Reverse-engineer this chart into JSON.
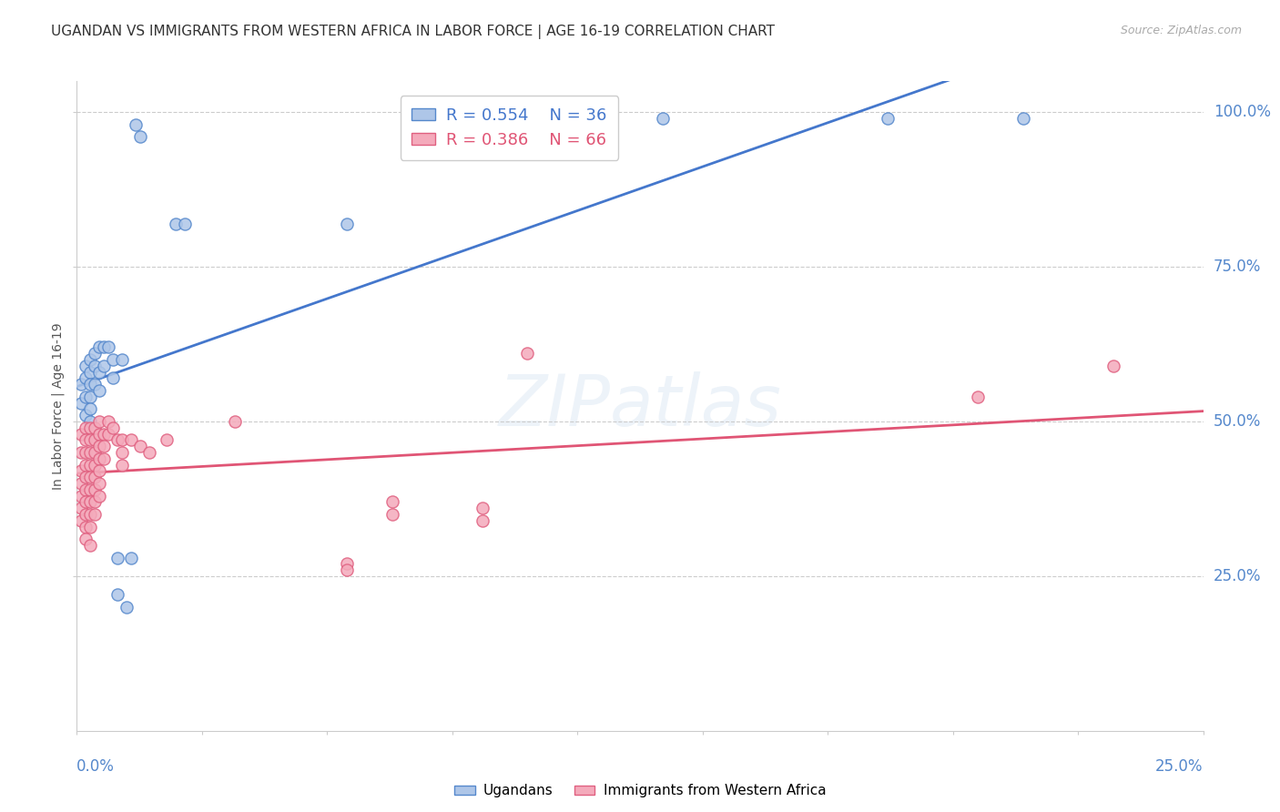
{
  "title": "UGANDAN VS IMMIGRANTS FROM WESTERN AFRICA IN LABOR FORCE | AGE 16-19 CORRELATION CHART",
  "source": "Source: ZipAtlas.com",
  "ylabel": "In Labor Force | Age 16-19",
  "legend_blue_r": "R = 0.554",
  "legend_blue_n": "N = 36",
  "legend_pink_r": "R = 0.386",
  "legend_pink_n": "N = 66",
  "watermark": "ZIPatlas",
  "blue_color": "#AEC6E8",
  "pink_color": "#F4AABB",
  "blue_edge_color": "#5588CC",
  "pink_edge_color": "#E06080",
  "blue_line_color": "#4477CC",
  "pink_line_color": "#E05575",
  "blue_scatter": [
    [
      0.001,
      0.56
    ],
    [
      0.001,
      0.53
    ],
    [
      0.002,
      0.59
    ],
    [
      0.002,
      0.57
    ],
    [
      0.002,
      0.54
    ],
    [
      0.002,
      0.51
    ],
    [
      0.003,
      0.6
    ],
    [
      0.003,
      0.58
    ],
    [
      0.003,
      0.56
    ],
    [
      0.003,
      0.54
    ],
    [
      0.003,
      0.52
    ],
    [
      0.003,
      0.5
    ],
    [
      0.004,
      0.61
    ],
    [
      0.004,
      0.59
    ],
    [
      0.004,
      0.56
    ],
    [
      0.005,
      0.62
    ],
    [
      0.005,
      0.58
    ],
    [
      0.005,
      0.55
    ],
    [
      0.006,
      0.62
    ],
    [
      0.006,
      0.59
    ],
    [
      0.007,
      0.62
    ],
    [
      0.008,
      0.6
    ],
    [
      0.008,
      0.57
    ],
    [
      0.009,
      0.28
    ],
    [
      0.009,
      0.22
    ],
    [
      0.01,
      0.6
    ],
    [
      0.011,
      0.2
    ],
    [
      0.012,
      0.28
    ],
    [
      0.013,
      0.98
    ],
    [
      0.014,
      0.96
    ],
    [
      0.022,
      0.82
    ],
    [
      0.024,
      0.82
    ],
    [
      0.06,
      0.82
    ],
    [
      0.13,
      0.99
    ],
    [
      0.18,
      0.99
    ],
    [
      0.21,
      0.99
    ]
  ],
  "pink_scatter": [
    [
      0.001,
      0.48
    ],
    [
      0.001,
      0.45
    ],
    [
      0.001,
      0.42
    ],
    [
      0.001,
      0.4
    ],
    [
      0.001,
      0.38
    ],
    [
      0.001,
      0.36
    ],
    [
      0.001,
      0.34
    ],
    [
      0.002,
      0.49
    ],
    [
      0.002,
      0.47
    ],
    [
      0.002,
      0.45
    ],
    [
      0.002,
      0.43
    ],
    [
      0.002,
      0.41
    ],
    [
      0.002,
      0.39
    ],
    [
      0.002,
      0.37
    ],
    [
      0.002,
      0.35
    ],
    [
      0.002,
      0.33
    ],
    [
      0.002,
      0.31
    ],
    [
      0.003,
      0.49
    ],
    [
      0.003,
      0.47
    ],
    [
      0.003,
      0.45
    ],
    [
      0.003,
      0.43
    ],
    [
      0.003,
      0.41
    ],
    [
      0.003,
      0.39
    ],
    [
      0.003,
      0.37
    ],
    [
      0.003,
      0.35
    ],
    [
      0.003,
      0.33
    ],
    [
      0.003,
      0.3
    ],
    [
      0.004,
      0.49
    ],
    [
      0.004,
      0.47
    ],
    [
      0.004,
      0.45
    ],
    [
      0.004,
      0.43
    ],
    [
      0.004,
      0.41
    ],
    [
      0.004,
      0.39
    ],
    [
      0.004,
      0.37
    ],
    [
      0.004,
      0.35
    ],
    [
      0.005,
      0.5
    ],
    [
      0.005,
      0.48
    ],
    [
      0.005,
      0.46
    ],
    [
      0.005,
      0.44
    ],
    [
      0.005,
      0.42
    ],
    [
      0.005,
      0.4
    ],
    [
      0.005,
      0.38
    ],
    [
      0.006,
      0.48
    ],
    [
      0.006,
      0.46
    ],
    [
      0.006,
      0.44
    ],
    [
      0.007,
      0.5
    ],
    [
      0.007,
      0.48
    ],
    [
      0.008,
      0.49
    ],
    [
      0.009,
      0.47
    ],
    [
      0.01,
      0.47
    ],
    [
      0.01,
      0.45
    ],
    [
      0.01,
      0.43
    ],
    [
      0.012,
      0.47
    ],
    [
      0.014,
      0.46
    ],
    [
      0.016,
      0.45
    ],
    [
      0.02,
      0.47
    ],
    [
      0.035,
      0.5
    ],
    [
      0.06,
      0.27
    ],
    [
      0.06,
      0.26
    ],
    [
      0.07,
      0.37
    ],
    [
      0.07,
      0.35
    ],
    [
      0.09,
      0.36
    ],
    [
      0.09,
      0.34
    ],
    [
      0.1,
      0.61
    ],
    [
      0.2,
      0.54
    ],
    [
      0.23,
      0.59
    ]
  ],
  "xlim": [
    0.0,
    0.25
  ],
  "ylim": [
    0.0,
    1.05
  ],
  "yticks": [
    0.25,
    0.5,
    0.75,
    1.0
  ],
  "ytick_labels": [
    "25.0%",
    "50.0%",
    "75.0%",
    "100.0%"
  ],
  "grid_color": "#CCCCCC",
  "bg_color": "#FFFFFF",
  "title_color": "#333333",
  "right_axis_color": "#5588CC"
}
